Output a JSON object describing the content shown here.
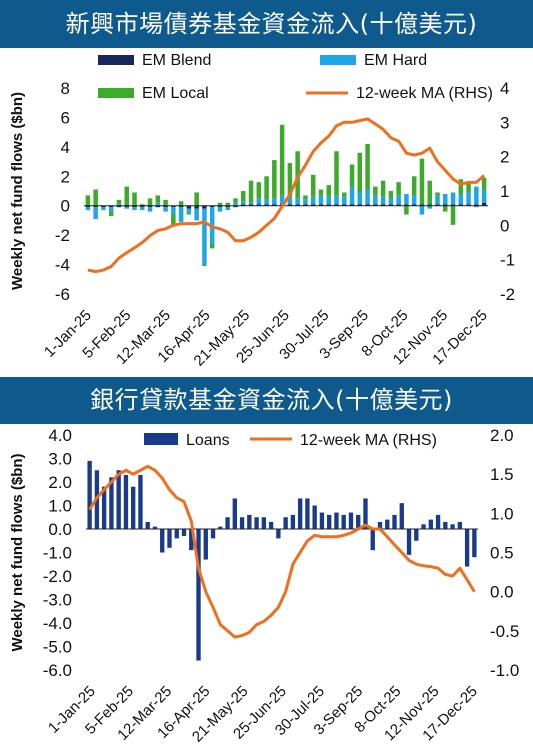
{
  "charts": [
    {
      "banner_title": "新興市場債券基金資金流入(十億美元)",
      "chart_data": {
        "type": "bar",
        "stacked": true,
        "title": "新興市場債券基金資金流入(十億美元)",
        "ylabel": "Weekly net fund flows ($bn)",
        "ylim": [
          -6,
          8
        ],
        "yticks": [
          8,
          6,
          4,
          2,
          0,
          -2,
          -4,
          -6
        ],
        "y2lim": [
          -2,
          4
        ],
        "y2ticks": [
          4,
          3,
          2,
          1,
          0,
          -1,
          -2
        ],
        "xtick_labels": [
          "1-Jan-25",
          "5-Feb-25",
          "12-Mar-25",
          "16-Apr-25",
          "21-May-25",
          "25-Jun-25",
          "30-Jul-25",
          "3-Sep-25",
          "8-Oct-25",
          "12-Nov-25",
          "17-Dec-25"
        ],
        "legend": [
          "EM Blend",
          "EM Hard",
          "EM Local",
          "12-week MA (RHS)"
        ],
        "colors": {
          "blend": "#14285a",
          "hard": "#1ea7e8",
          "local": "#3cab2a",
          "ma": "#ee6f1e"
        },
        "blend": [
          -0.1,
          -0.1,
          -0.1,
          -0.1,
          -0.1,
          -0.1,
          -0.1,
          -0.1,
          -0.1,
          -0.1,
          -0.1,
          -0.1,
          -0.1,
          -0.2,
          -0.2,
          -0.2,
          -0.1,
          -0.1,
          -0.1,
          -0.1,
          0.1,
          0.1,
          0.1,
          0.1,
          0.1,
          0.1,
          0.1,
          0.1,
          0.1,
          0.1,
          0.1,
          0.1,
          0.1,
          0.1,
          0.1,
          0.1,
          0.1,
          0.1,
          0.1,
          0.1,
          0.1,
          0.1,
          0.1,
          0.1,
          0.1,
          0.1,
          0.1,
          0.1,
          0.1,
          0.1,
          0.1,
          0.2
        ],
        "hard": [
          -0.2,
          -0.8,
          -0.2,
          -0.3,
          0.1,
          -0.1,
          -0.2,
          -0.2,
          -0.3,
          0.2,
          -0.3,
          -0.5,
          -1.0,
          -0.3,
          -0.8,
          -3.8,
          -2.5,
          -0.3,
          -0.2,
          0.2,
          0.2,
          0.1,
          0.4,
          0.3,
          0.4,
          0.6,
          0.5,
          0.4,
          0.3,
          0.5,
          0.6,
          0.5,
          0.6,
          0.5,
          1.2,
          0.8,
          1.0,
          0.6,
          0.5,
          0.4,
          0.6,
          0.7,
          0.6,
          -0.6,
          -0.2,
          0.6,
          0.7,
          0.8,
          0.7,
          0.8,
          1.2,
          0.9
        ],
        "local": [
          0.7,
          1.1,
          0,
          -0.3,
          0.3,
          1.3,
          0.9,
          0.1,
          0.5,
          0.5,
          0.4,
          -0.7,
          0.3,
          -0.1,
          0.9,
          -0.1,
          -0.3,
          0.2,
          0.2,
          0.3,
          0.7,
          1.5,
          1.1,
          1.6,
          2.6,
          4.8,
          2.3,
          3.2,
          0.3,
          1.5,
          0.4,
          0.8,
          3.0,
          0.3,
          1.5,
          2.7,
          3.1,
          0.6,
          1.1,
          0.5,
          0.9,
          -0.6,
          1.3,
          3.1,
          1.6,
          0.2,
          -0.4,
          -1.3,
          1.0,
          0.7,
          -0.1,
          0.8
        ],
        "ma": [
          -1.3,
          -1.35,
          -1.3,
          -1.2,
          -0.95,
          -0.8,
          -0.65,
          -0.5,
          -0.3,
          -0.15,
          -0.1,
          0.0,
          0.05,
          0.05,
          0.05,
          0.1,
          -0.05,
          -0.1,
          -0.2,
          -0.45,
          -0.45,
          -0.35,
          -0.2,
          0.0,
          0.2,
          0.55,
          0.9,
          1.4,
          1.75,
          2.15,
          2.4,
          2.6,
          2.9,
          3.0,
          3.0,
          3.05,
          3.1,
          2.95,
          2.8,
          2.55,
          2.45,
          2.1,
          2.05,
          2.1,
          2.25,
          1.85,
          1.6,
          1.35,
          1.2,
          1.25,
          1.25,
          1.45
        ]
      }
    },
    {
      "banner_title": "銀行貸款基金資金流入(十億美元)",
      "chart_data": {
        "type": "bar",
        "title": "銀行貸款基金資金流入(十億美元)",
        "ylabel": "Weekly net fund flows ($bn)",
        "ylim": [
          -6,
          4
        ],
        "yticks": [
          "4.0",
          "3.0",
          "2.0",
          "1.0",
          "0.0",
          "-1.0",
          "-2.0",
          "-3.0",
          "-4.0",
          "-5.0",
          "-6.0"
        ],
        "y2lim": [
          -1,
          2
        ],
        "y2ticks": [
          "2.0",
          "1.5",
          "1.0",
          "0.5",
          "0.0",
          "-0.5",
          "-1.0"
        ],
        "xtick_labels": [
          "1-Jan-25",
          "5-Feb-25",
          "12-Mar-25",
          "16-Apr-25",
          "21-May-25",
          "25-Jun-25",
          "30-Jul-25",
          "3-Sep-25",
          "8-Oct-25",
          "12-Nov-25",
          "17-Dec-25"
        ],
        "legend": [
          "Loans",
          "12-week MA (RHS)"
        ],
        "colors": {
          "loans": "#1a3a8c",
          "ma": "#ee6f1e"
        },
        "loans": [
          2.9,
          2.5,
          1.8,
          2.2,
          2.5,
          2.3,
          1.8,
          2.3,
          0.3,
          0.1,
          -1.0,
          -0.8,
          -0.4,
          -0.3,
          -0.9,
          -5.6,
          -1.3,
          -0.4,
          0.1,
          0.5,
          1.3,
          0.5,
          0.6,
          0.5,
          0.5,
          0.3,
          -0.4,
          0.5,
          0.6,
          1.3,
          1.3,
          1.0,
          0.7,
          0.6,
          0.7,
          0.6,
          0.7,
          0.6,
          1.3,
          -0.9,
          0.3,
          0.4,
          0.6,
          1.1,
          -1.1,
          -0.5,
          0.2,
          0.4,
          0.6,
          0.3,
          0.2,
          0.3,
          -1.6,
          -1.2
        ],
        "ma": [
          1.05,
          1.2,
          1.3,
          1.4,
          1.5,
          1.55,
          1.5,
          1.55,
          1.6,
          1.55,
          1.45,
          1.3,
          1.2,
          1.15,
          0.9,
          0.3,
          0.0,
          -0.2,
          -0.42,
          -0.5,
          -0.58,
          -0.56,
          -0.52,
          -0.42,
          -0.38,
          -0.3,
          -0.2,
          0.0,
          0.35,
          0.5,
          0.65,
          0.72,
          0.7,
          0.7,
          0.7,
          0.72,
          0.75,
          0.8,
          0.85,
          0.8,
          0.8,
          0.7,
          0.6,
          0.5,
          0.4,
          0.35,
          0.33,
          0.32,
          0.3,
          0.22,
          0.2,
          0.3,
          0.15,
          0.0
        ]
      }
    }
  ]
}
